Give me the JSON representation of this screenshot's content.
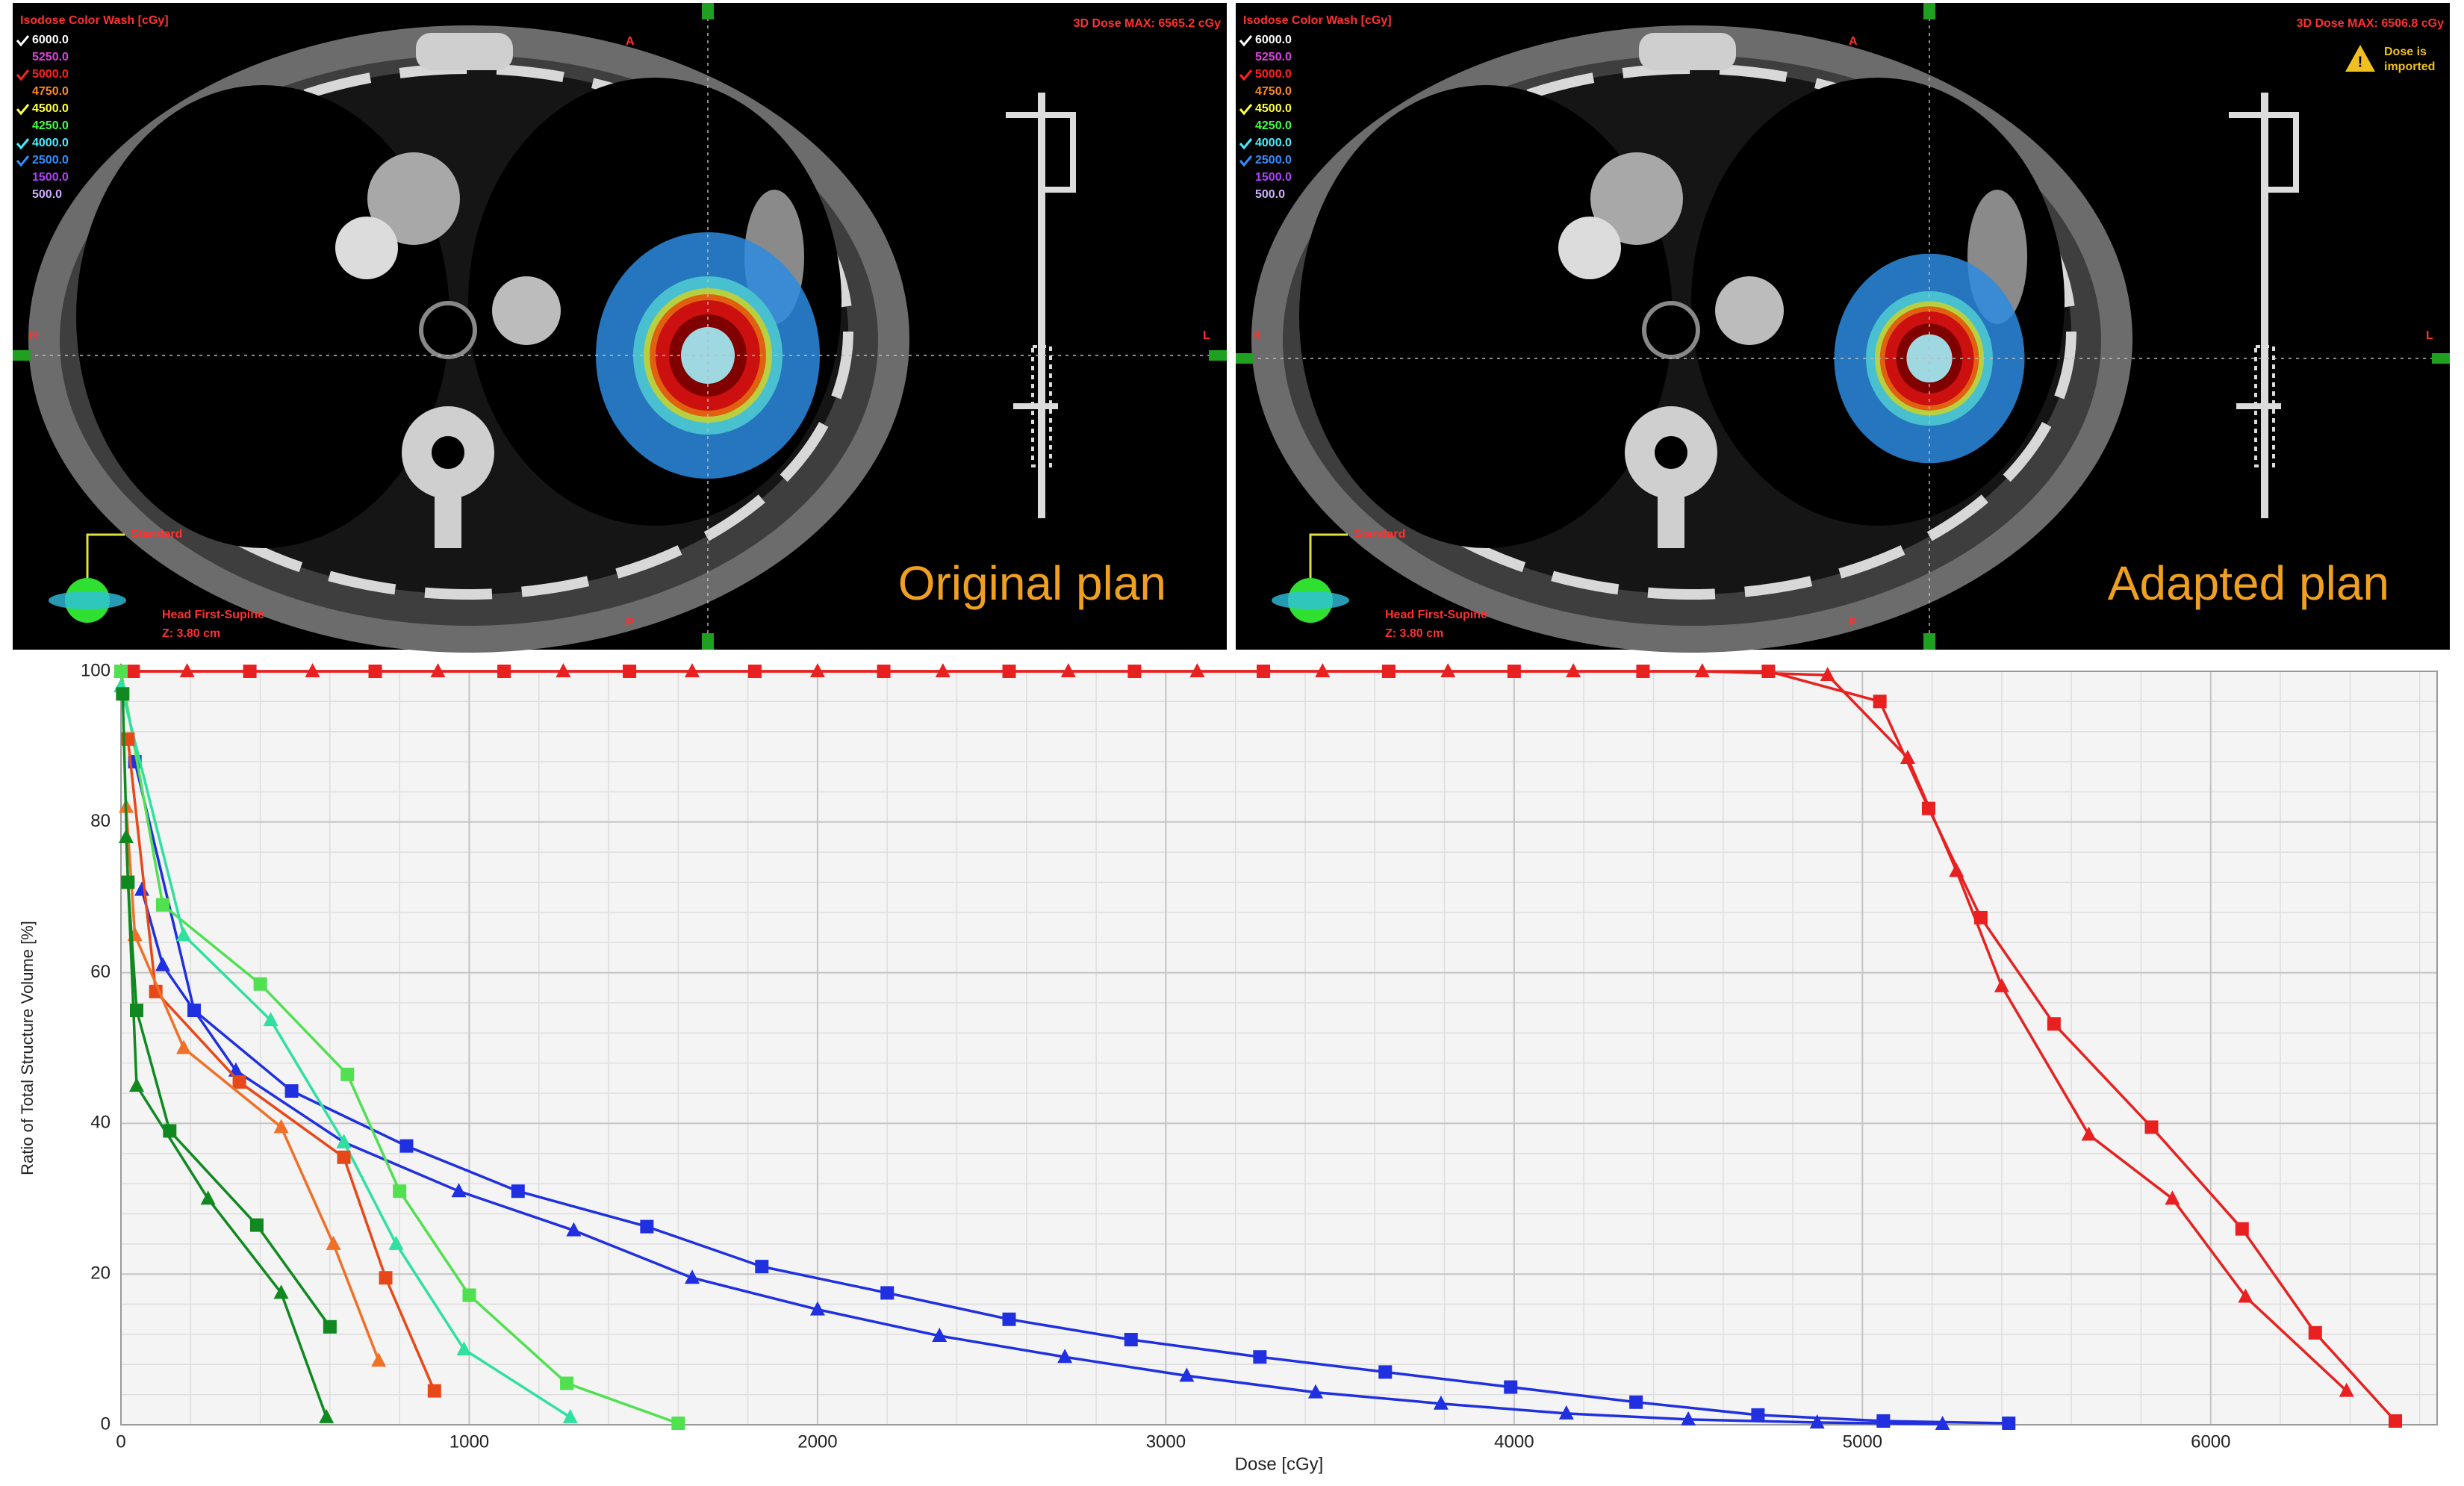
{
  "panels": [
    {
      "legend_title": "Isodose Color Wash [cGy]",
      "levels": [
        {
          "label": "6000.0",
          "color": "#ffffff",
          "checked": true
        },
        {
          "label": "5250.0",
          "color": "#e040e0",
          "checked": false
        },
        {
          "label": "5000.0",
          "color": "#ff2020",
          "checked": true
        },
        {
          "label": "4750.0",
          "color": "#ff8a20",
          "checked": false
        },
        {
          "label": "4500.0",
          "color": "#ffff40",
          "checked": true
        },
        {
          "label": "4250.0",
          "color": "#40ff40",
          "checked": false
        },
        {
          "label": "4000.0",
          "color": "#40f0ff",
          "checked": true
        },
        {
          "label": "2500.0",
          "color": "#3090ff",
          "checked": true
        },
        {
          "label": "1500.0",
          "color": "#b040ff",
          "checked": false
        },
        {
          "label": "500.0",
          "color": "#d0b0ff",
          "checked": false
        }
      ],
      "dose_max": "3D Dose MAX: 6565.2 cGy",
      "anterior": "A",
      "posterior": "P",
      "right": "R",
      "left": "L",
      "view": "Standard",
      "position": "Head First-Supine",
      "slice": "Z: 3.80 cm",
      "caption": "Original plan"
    },
    {
      "legend_title": "Isodose Color Wash [cGy]",
      "levels": [
        {
          "label": "6000.0",
          "color": "#ffffff",
          "checked": true
        },
        {
          "label": "5250.0",
          "color": "#e040e0",
          "checked": false
        },
        {
          "label": "5000.0",
          "color": "#ff2020",
          "checked": true
        },
        {
          "label": "4750.0",
          "color": "#ff8a20",
          "checked": false
        },
        {
          "label": "4500.0",
          "color": "#ffff40",
          "checked": true
        },
        {
          "label": "4250.0",
          "color": "#40ff40",
          "checked": false
        },
        {
          "label": "4000.0",
          "color": "#40f0ff",
          "checked": true
        },
        {
          "label": "2500.0",
          "color": "#3090ff",
          "checked": true
        },
        {
          "label": "1500.0",
          "color": "#b040ff",
          "checked": false
        },
        {
          "label": "500.0",
          "color": "#d0b0ff",
          "checked": false
        }
      ],
      "dose_max": "3D Dose MAX: 6506.8 cGy",
      "anterior": "A",
      "posterior": "P",
      "right": "R",
      "left": "L",
      "view": "Standard",
      "position": "Head First-Supine",
      "slice": "Z: 3.80 cm",
      "caption": "Adapted plan",
      "notice": [
        "Dose is",
        "imported"
      ]
    }
  ],
  "chart_data": {
    "type": "line",
    "x_label": "Dose [cGy]",
    "y_label": "Ratio of Total Structure Volume [%]",
    "xlim": [
      0,
      6650
    ],
    "ylim": [
      0,
      100
    ],
    "xticks": [
      0,
      1000,
      2000,
      3000,
      4000,
      5000,
      6000
    ],
    "yticks": [
      0,
      20,
      40,
      60,
      80,
      100
    ],
    "grid": true,
    "minor_grid": true,
    "series": [
      {
        "color": "#e82020",
        "marker": "square",
        "x": [
          0,
          35,
          370,
          730,
          1100,
          1460,
          1820,
          2190,
          2550,
          2910,
          3280,
          3640,
          4000,
          4370,
          4730,
          5050,
          5190,
          5340,
          5550,
          5830,
          6090,
          6300,
          6530
        ],
        "values": [
          100,
          100,
          100,
          100,
          100,
          100,
          100,
          100,
          100,
          100,
          100,
          100,
          100,
          100,
          100,
          96,
          81.8,
          67.3,
          53.2,
          39.5,
          26,
          12.2,
          0.5
        ]
      },
      {
        "color": "#e82020",
        "marker": "triangle",
        "x": [
          0,
          190,
          550,
          910,
          1270,
          1640,
          2000,
          2360,
          2720,
          3090,
          3450,
          3810,
          4170,
          4540,
          4900,
          5130,
          5270,
          5400,
          5650,
          5890,
          6100,
          6390
        ],
        "values": [
          100,
          100,
          100,
          100,
          100,
          100,
          100,
          100,
          100,
          100,
          100,
          100,
          100,
          100,
          99.5,
          88.5,
          73.5,
          58.2,
          38.5,
          30,
          17,
          4.5
        ]
      },
      {
        "color": "#2030e0",
        "marker": "square",
        "x": [
          40,
          210,
          490,
          820,
          1140,
          1510,
          1840,
          2200,
          2550,
          2900,
          3270,
          3630,
          3990,
          4350,
          4700,
          5060,
          5420
        ],
        "values": [
          88,
          55,
          44.3,
          37,
          31,
          26.3,
          21,
          17.5,
          14,
          11.3,
          9,
          7,
          5,
          3,
          1.3,
          0.5,
          0.2
        ]
      },
      {
        "color": "#2030e0",
        "marker": "triangle",
        "x": [
          60,
          120,
          330,
          640,
          970,
          1300,
          1640,
          2000,
          2350,
          2710,
          3060,
          3430,
          3790,
          4150,
          4500,
          4870,
          5230
        ],
        "values": [
          71,
          61,
          47,
          37.5,
          31,
          25.8,
          19.5,
          15.3,
          11.8,
          9,
          6.5,
          4.3,
          2.8,
          1.5,
          0.7,
          0.3,
          0.1
        ]
      },
      {
        "color": "#50e050",
        "marker": "square",
        "x": [
          0,
          120,
          400,
          650,
          800,
          1000,
          1280,
          1600
        ],
        "values": [
          100,
          69,
          58.5,
          46.5,
          31,
          17.2,
          5.5,
          0.2
        ]
      },
      {
        "color": "#30e0a0",
        "marker": "triangle",
        "x": [
          0,
          180,
          430,
          640,
          790,
          985,
          1290
        ],
        "values": [
          98,
          65,
          53.7,
          37.5,
          24,
          10,
          1
        ]
      },
      {
        "color": "#e84818",
        "marker": "square",
        "x": [
          20,
          100,
          340,
          640,
          760,
          900
        ],
        "values": [
          91,
          57.5,
          45.5,
          35.5,
          19.5,
          4.5
        ]
      },
      {
        "color": "#f07028",
        "marker": "triangle",
        "x": [
          15,
          40,
          180,
          460,
          610,
          740
        ],
        "values": [
          82,
          65,
          50,
          39.5,
          24,
          8.5
        ]
      },
      {
        "color": "#108a20",
        "marker": "square",
        "x": [
          5,
          20,
          45,
          140,
          390,
          600
        ],
        "values": [
          97,
          72,
          55,
          39,
          26.5,
          13
        ]
      },
      {
        "color": "#108a20",
        "marker": "triangle",
        "x": [
          15,
          45,
          250,
          460,
          590
        ],
        "values": [
          78,
          45,
          30,
          17.5,
          1
        ]
      }
    ]
  }
}
